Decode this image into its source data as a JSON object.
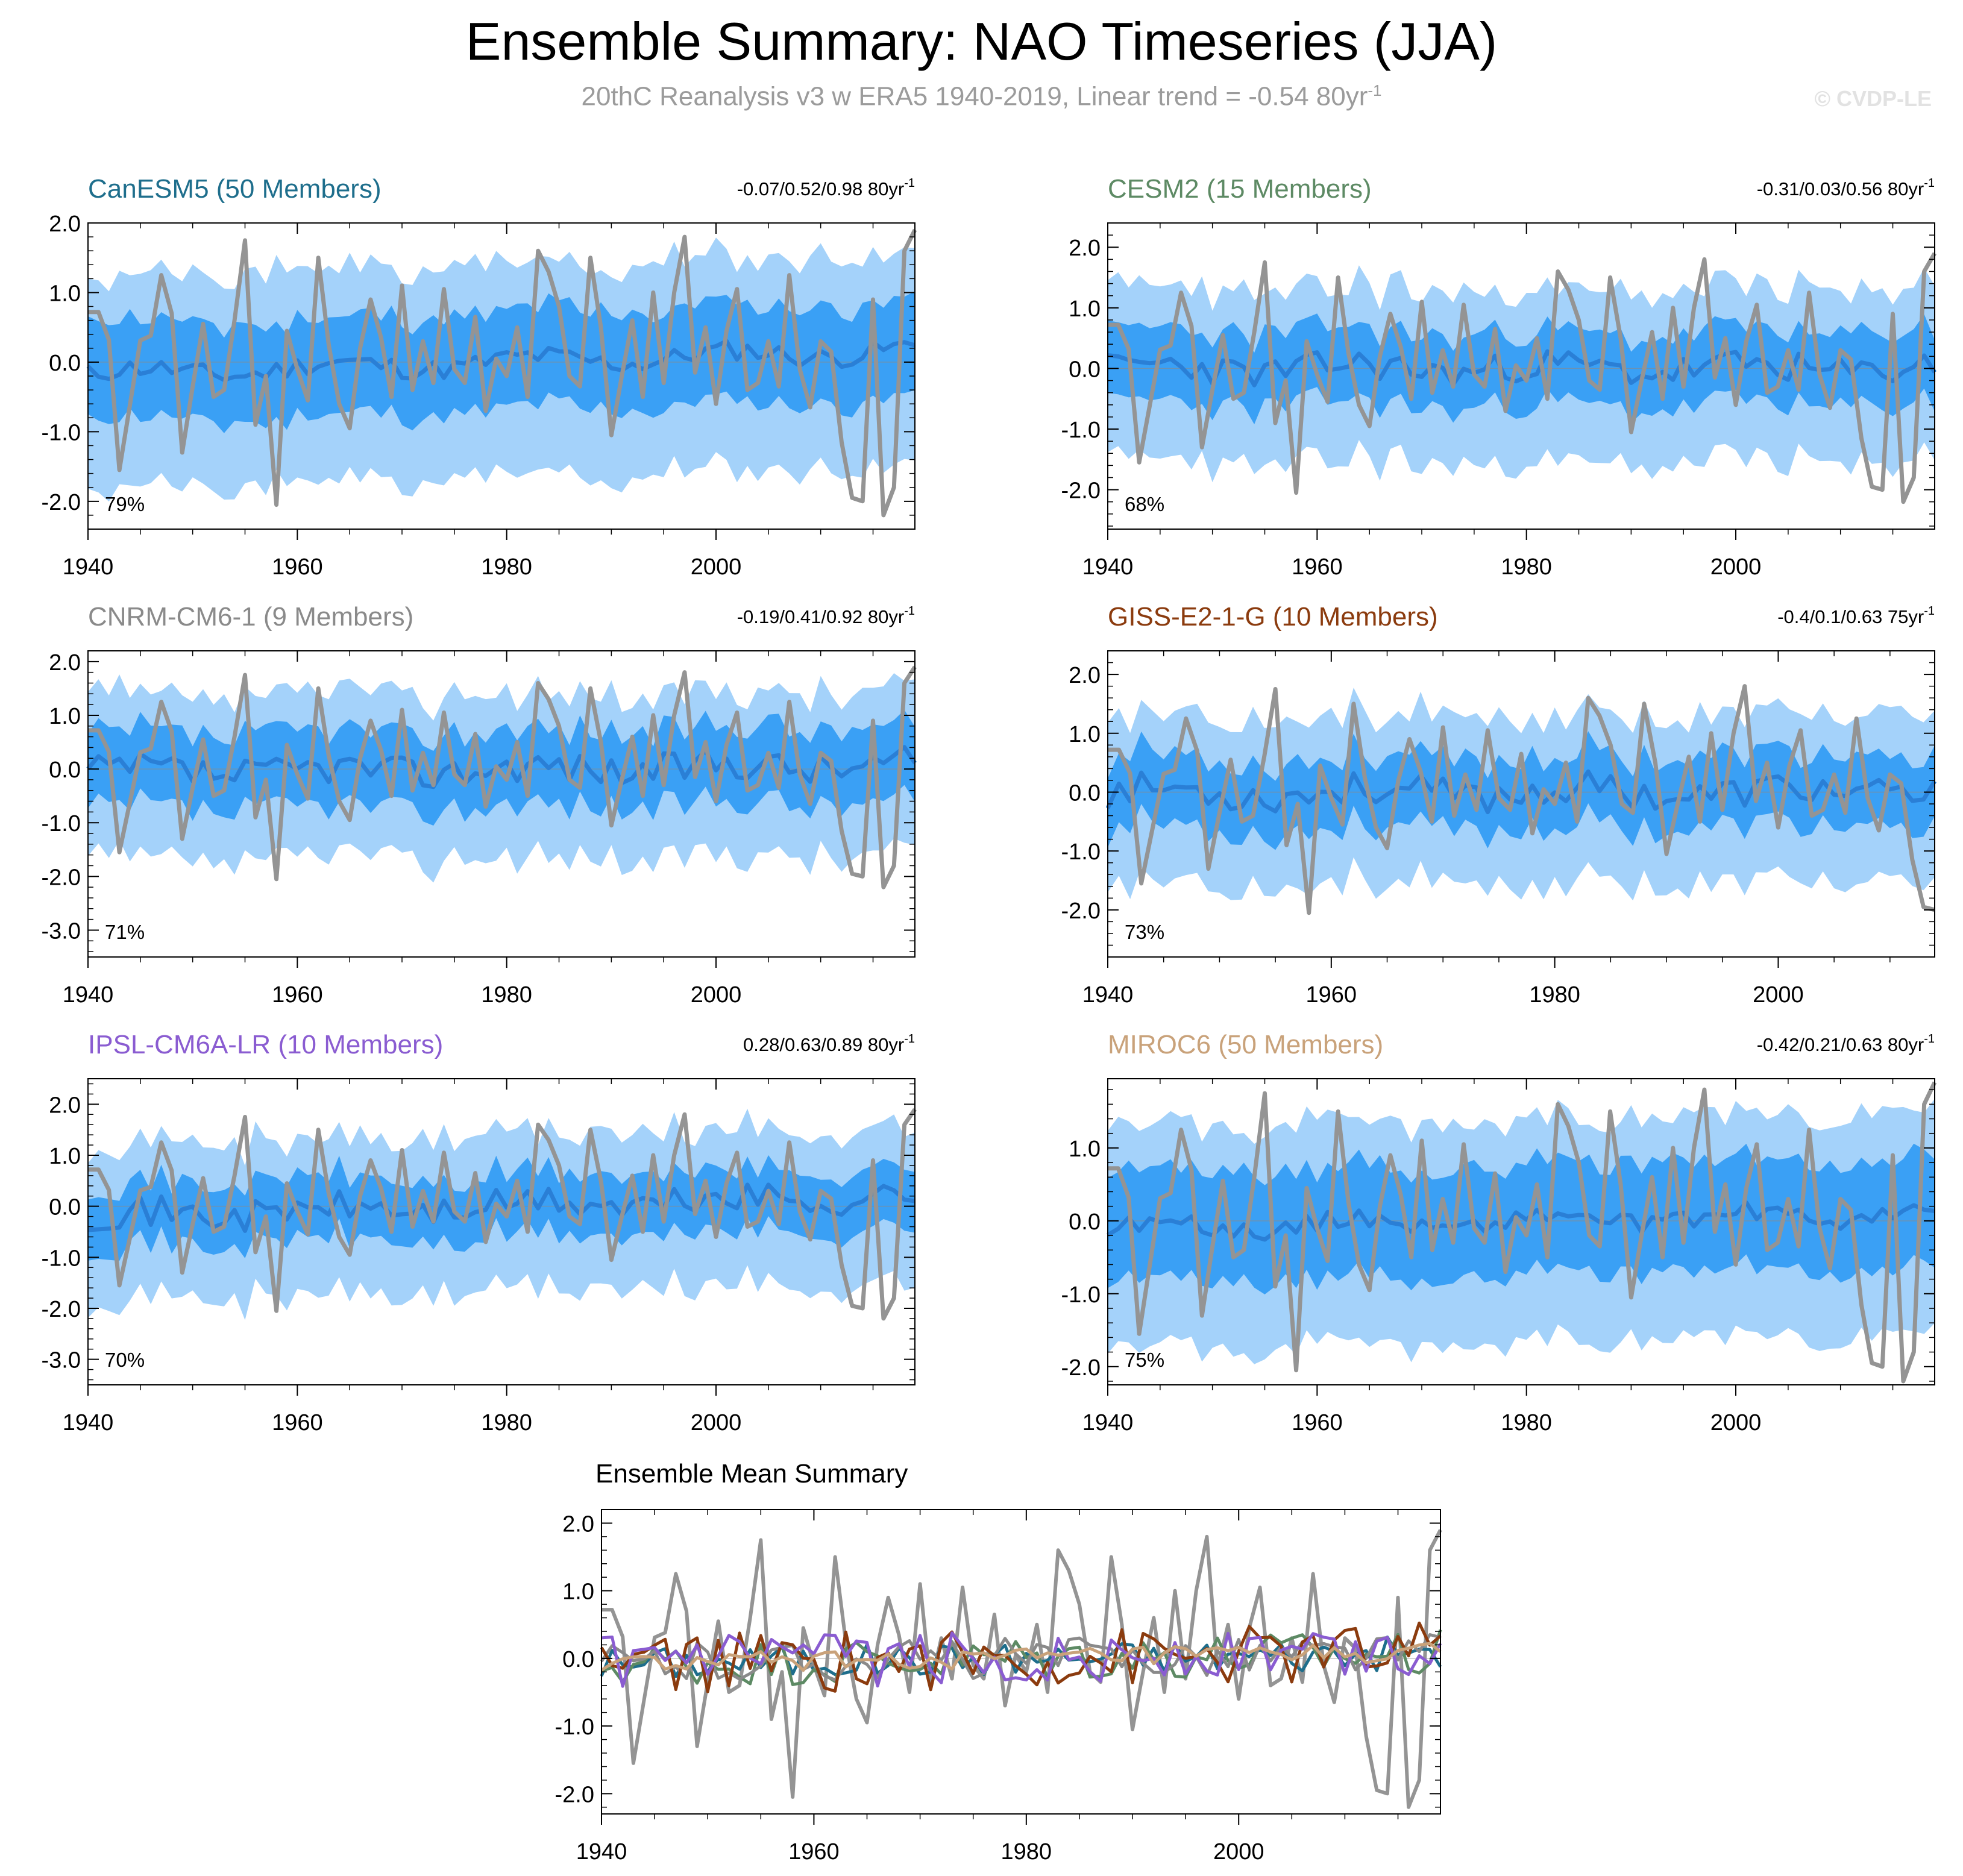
{
  "title": "Ensemble Summary: NAO Timeseries (JJA)",
  "subtitle": "20thC Reanalysis v3 w ERA5 1940-2019, Linear trend = -0.54 80yr",
  "subtitle_sup": "-1",
  "watermark": "© CVDP-LE",
  "colors": {
    "outer_band": "#a4d2fa",
    "inner_band": "#3aa0f5",
    "ens_mean_line": "#2a7fd6",
    "obs_line": "#949494",
    "zero_line": "#8a8a8a"
  },
  "chart_data": [
    {
      "type": "area",
      "id": "canesm5",
      "title": "CanESM5 (50 Members)",
      "title_color": "#1e6e8c",
      "stat": "-0.07/0.52/0.98 80yr",
      "stat_sup": "-1",
      "pct": "79%",
      "xlim": [
        1940,
        2019
      ],
      "ylim": [
        -2.4,
        2.0
      ],
      "yticks": [
        2.0,
        1.0,
        0.0,
        -1.0,
        -2.0
      ],
      "ytick_labels": [
        "2.0",
        "1.0",
        "0.0",
        "-1.0",
        "-2.0"
      ],
      "xticks": [
        1940,
        1960,
        1980,
        2000
      ],
      "xtick_labels": [
        "1940",
        "1960",
        "1980",
        "2000"
      ],
      "spread_outer": 1.4,
      "spread_inner": 0.7,
      "trend_slope": 0.0045,
      "mean_amp": 0.15,
      "seed": 11
    },
    {
      "type": "area",
      "id": "cesm2",
      "title": "CESM2 (15 Members)",
      "title_color": "#5d8a64",
      "stat": "-0.31/0.03/0.56 80yr",
      "stat_sup": "-1",
      "pct": "68%",
      "xlim": [
        1940,
        2019
      ],
      "ylim": [
        -2.65,
        2.4
      ],
      "yticks": [
        2.0,
        1.0,
        0.0,
        -1.0,
        -2.0
      ],
      "ytick_labels": [
        "2.0",
        "1.0",
        "0.0",
        "-1.0",
        "-2.0"
      ],
      "xticks": [
        1940,
        1960,
        1980,
        2000
      ],
      "xtick_labels": [
        "1940",
        "1960",
        "1980",
        "2000"
      ],
      "spread_outer": 1.3,
      "spread_inner": 0.6,
      "trend_slope": 0.0,
      "mean_amp": 0.25,
      "seed": 23
    },
    {
      "type": "area",
      "id": "cnrm",
      "title": "CNRM-CM6-1 (9 Members)",
      "title_color": "#8a8a8a",
      "stat": "-0.19/0.41/0.92 80yr",
      "stat_sup": "-1",
      "pct": "71%",
      "xlim": [
        1940,
        2019
      ],
      "ylim": [
        -3.5,
        2.2
      ],
      "yticks": [
        2.0,
        1.0,
        0.0,
        -1.0,
        -2.0,
        -3.0
      ],
      "ytick_labels": [
        "2.0",
        "1.0",
        "0.0",
        "-1.0",
        "-2.0",
        "-3.0"
      ],
      "xticks": [
        1940,
        1960,
        1980,
        2000
      ],
      "xtick_labels": [
        "1940",
        "1960",
        "1980",
        "2000"
      ],
      "spread_outer": 1.4,
      "spread_inner": 0.7,
      "trend_slope": 0.002,
      "mean_amp": 0.3,
      "seed": 37
    },
    {
      "type": "area",
      "id": "giss",
      "title": "GISS-E2-1-G (10 Members)",
      "title_color": "#8b3b0e",
      "stat": "-0.4/0.1/0.63 75yr",
      "stat_sup": "-1",
      "pct": "73%",
      "xlim": [
        1940,
        2014
      ],
      "ylim": [
        -2.8,
        2.4
      ],
      "yticks": [
        2.0,
        1.0,
        0.0,
        -1.0,
        -2.0
      ],
      "ytick_labels": [
        "2.0",
        "1.0",
        "0.0",
        "-1.0",
        "-2.0"
      ],
      "xticks": [
        1940,
        1960,
        1980,
        2000
      ],
      "xtick_labels": [
        "1940",
        "1960",
        "1980",
        "2000"
      ],
      "spread_outer": 1.3,
      "spread_inner": 0.6,
      "trend_slope": 0.0,
      "mean_amp": 0.28,
      "seed": 53
    },
    {
      "type": "area",
      "id": "ipsl",
      "title": "IPSL-CM6A-LR (10 Members)",
      "title_color": "#8a5cd1",
      "stat": "0.28/0.63/0.89 80yr",
      "stat_sup": "-1",
      "pct": "70%",
      "xlim": [
        1940,
        2019
      ],
      "ylim": [
        -3.5,
        2.5
      ],
      "yticks": [
        2.0,
        1.0,
        0.0,
        -1.0,
        -2.0,
        -3.0
      ],
      "ytick_labels": [
        "2.0",
        "1.0",
        "0.0",
        "-1.0",
        "-2.0",
        "-3.0"
      ],
      "xticks": [
        1940,
        1960,
        1980,
        2000
      ],
      "xtick_labels": [
        "1940",
        "1960",
        "1980",
        "2000"
      ],
      "spread_outer": 1.4,
      "spread_inner": 0.6,
      "trend_slope": 0.005,
      "mean_amp": 0.3,
      "seed": 71
    },
    {
      "type": "area",
      "id": "miroc6",
      "title": "MIROC6 (50 Members)",
      "title_color": "#c9a27a",
      "stat": "-0.42/0.21/0.63 80yr",
      "stat_sup": "-1",
      "pct": "75%",
      "xlim": [
        1940,
        2019
      ],
      "ylim": [
        -2.25,
        1.95
      ],
      "yticks": [
        1.0,
        0.0,
        -1.0,
        -2.0
      ],
      "ytick_labels": [
        "1.0",
        "0.0",
        "-1.0",
        "-2.0"
      ],
      "xticks": [
        1940,
        1960,
        1980,
        2000
      ],
      "xtick_labels": [
        "1940",
        "1960",
        "1980",
        "2000"
      ],
      "spread_outer": 1.4,
      "spread_inner": 0.75,
      "trend_slope": 0.0025,
      "mean_amp": 0.12,
      "seed": 89
    },
    {
      "type": "line",
      "id": "ensmean",
      "title": "Ensemble Mean Summary",
      "title_color": "#000000",
      "xlim": [
        1940,
        2019
      ],
      "ylim": [
        -2.3,
        2.2
      ],
      "yticks": [
        2.0,
        1.0,
        0.0,
        -1.0,
        -2.0
      ],
      "ytick_labels": [
        "2.0",
        "1.0",
        "0.0",
        "-1.0",
        "-2.0"
      ],
      "xticks": [
        1940,
        1960,
        1980,
        2000
      ],
      "xtick_labels": [
        "1940",
        "1960",
        "1980",
        "2000"
      ],
      "series": [
        {
          "name": "CanESM5",
          "color": "#1e6e8c"
        },
        {
          "name": "CESM2",
          "color": "#5d8a64"
        },
        {
          "name": "CNRM-CM6-1",
          "color": "#8a8a8a"
        },
        {
          "name": "GISS-E2-1-G",
          "color": "#8b3b0e"
        },
        {
          "name": "IPSL-CM6A-LR",
          "color": "#8a5cd1"
        },
        {
          "name": "MIROC6",
          "color": "#c9a27a"
        }
      ]
    }
  ],
  "observed": {
    "name": "20thC Reanalysis v3 w ERA5",
    "years": [
      1940,
      2019
    ],
    "values": [
      0.72,
      0.72,
      0.32,
      -1.55,
      -0.62,
      0.31,
      0.38,
      1.25,
      0.7,
      -1.3,
      -0.35,
      0.55,
      -0.5,
      -0.4,
      0.6,
      1.75,
      -0.9,
      -0.2,
      -2.05,
      0.45,
      -0.1,
      -0.55,
      1.5,
      0.25,
      -0.6,
      -0.95,
      0.2,
      0.9,
      0.35,
      -0.5,
      1.1,
      -0.4,
      0.3,
      -0.3,
      1.05,
      -0.1,
      -0.3,
      0.65,
      -0.7,
      0.05,
      -0.2,
      0.5,
      -0.5,
      1.6,
      1.3,
      0.8,
      -0.2,
      -0.35,
      1.5,
      0.5,
      -1.05,
      -0.2,
      0.6,
      -0.5,
      1.0,
      -0.3,
      1.0,
      1.8,
      -0.15,
      0.5,
      -0.6,
      0.45,
      1.05,
      -0.4,
      -0.3,
      0.3,
      -0.35,
      1.25,
      -0.1,
      -0.65,
      0.3,
      0.15,
      -1.15,
      -1.95,
      -2.0,
      0.9,
      -2.2,
      -1.8,
      1.6,
      1.9
    ]
  }
}
